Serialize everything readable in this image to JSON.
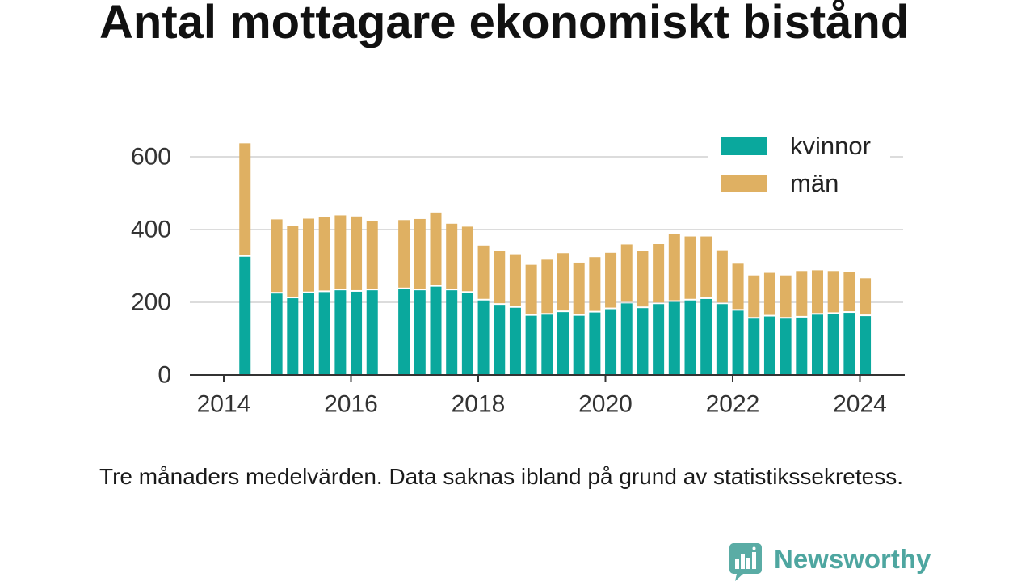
{
  "chart_data": {
    "type": "bar",
    "stacked": true,
    "title": "Antal mottagare ekonomiskt bistånd",
    "note": "Tre månaders medelvärden. Data saknas ibland på grund av statistikssekretess.",
    "ylim": [
      0,
      640
    ],
    "yticks": [
      0,
      200,
      400,
      600
    ],
    "xticks": [
      "2014",
      "2016",
      "2018",
      "2020",
      "2022",
      "2024"
    ],
    "grid": "horizontal",
    "legend": "top-right",
    "x": [
      "2014-05",
      "2014-11",
      "2015-02",
      "2015-05",
      "2015-08",
      "2015-11",
      "2016-02",
      "2016-05",
      "2016-11",
      "2017-02",
      "2017-05",
      "2017-08",
      "2017-11",
      "2018-02",
      "2018-05",
      "2018-08",
      "2018-11",
      "2019-02",
      "2019-05",
      "2019-08",
      "2019-11",
      "2020-02",
      "2020-05",
      "2020-08",
      "2020-11",
      "2021-02",
      "2021-05",
      "2021-08",
      "2021-11",
      "2022-02",
      "2022-05",
      "2022-08",
      "2022-11",
      "2023-02",
      "2023-05",
      "2023-08",
      "2023-11",
      "2024-02"
    ],
    "series": [
      {
        "name": "kvinnor",
        "color": "#0aa89d",
        "values": [
          325,
          224,
          211,
          225,
          228,
          233,
          229,
          233,
          236,
          233,
          243,
          233,
          226,
          205,
          193,
          185,
          163,
          166,
          173,
          163,
          172,
          181,
          197,
          184,
          195,
          201,
          205,
          209,
          195,
          177,
          155,
          161,
          155,
          158,
          166,
          168,
          171,
          162
        ]
      },
      {
        "name": "män",
        "color": "#dfb062",
        "values": [
          312,
          204,
          198,
          205,
          206,
          206,
          207,
          190,
          190,
          196,
          204,
          183,
          182,
          151,
          147,
          147,
          140,
          151,
          162,
          146,
          152,
          155,
          162,
          156,
          165,
          187,
          176,
          172,
          148,
          129,
          119,
          120,
          119,
          128,
          122,
          118,
          112,
          104
        ]
      }
    ]
  },
  "logo": {
    "text": "Newsworthy",
    "icon": "bar-chart-speech-bubble-icon",
    "color": "#4ea6a0"
  }
}
